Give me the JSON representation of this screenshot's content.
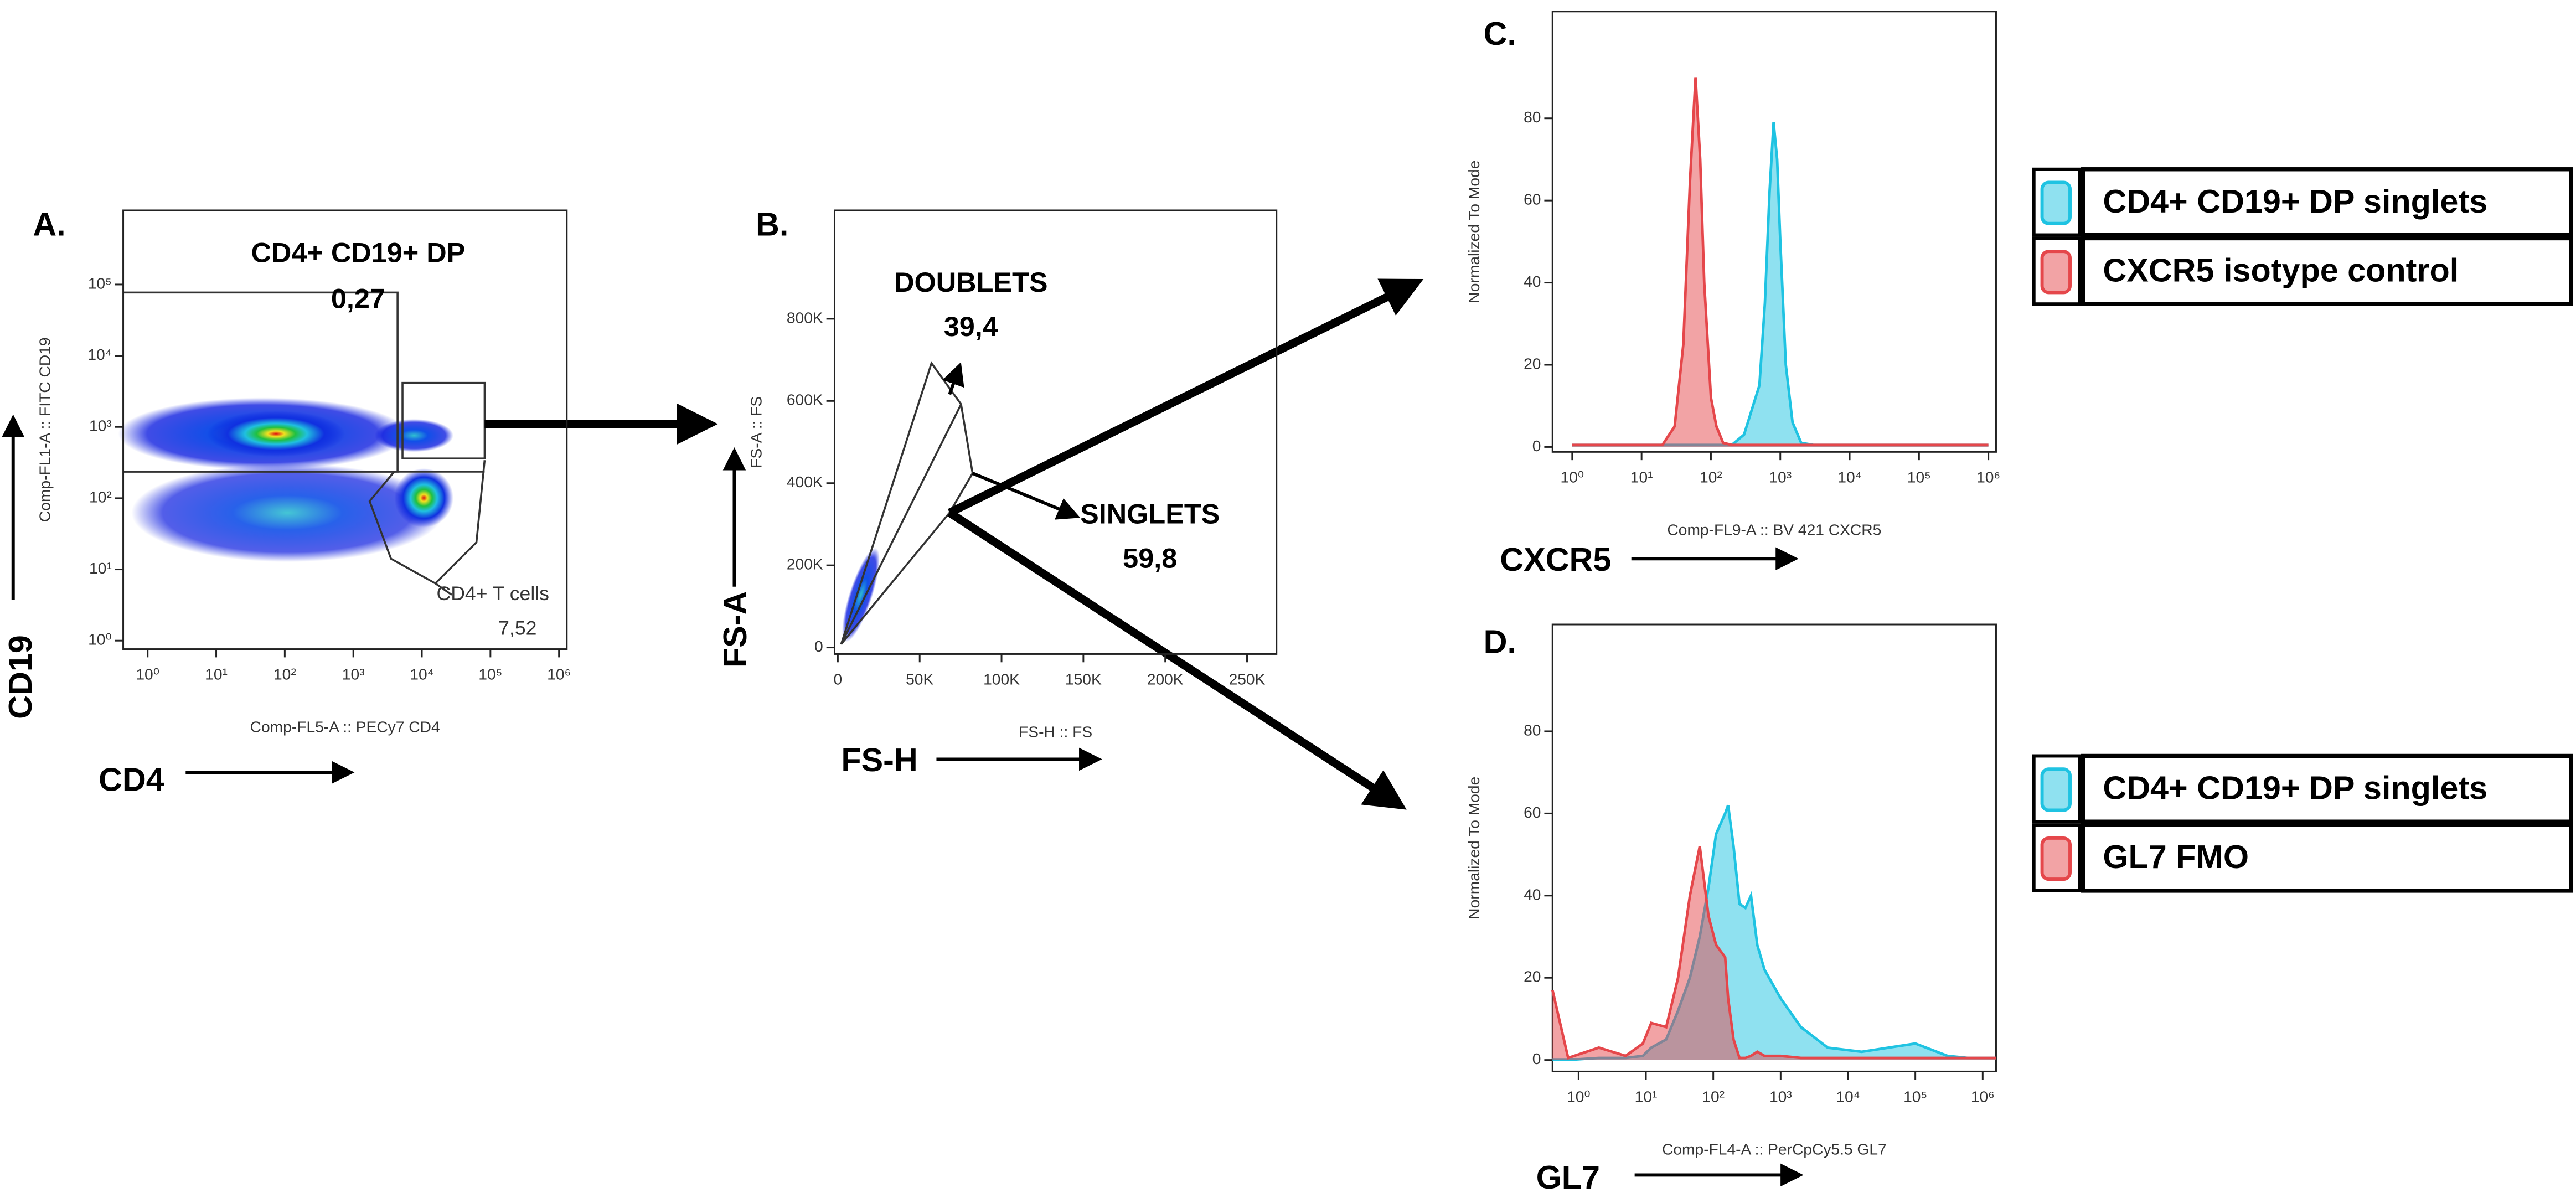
{
  "chart_data": [
    {
      "type": "density",
      "panel_label": "A.",
      "xlabel": "Comp-FL5-A :: PECy7 CD4",
      "ylabel": "Comp-FL1-A :: FITC CD19",
      "xmarker": "CD4",
      "ymarker": "CD19",
      "xscale": "log",
      "yscale": "log",
      "xlim": [
        0.44,
        1300000
      ],
      "ylim": [
        0.76,
        1100000
      ],
      "xticks": [
        {
          "value": 1,
          "label": "10⁰"
        },
        {
          "value": 10,
          "label": "10¹"
        },
        {
          "value": 100,
          "label": "10²"
        },
        {
          "value": 1000,
          "label": "10³"
        },
        {
          "value": 10000,
          "label": "10⁴"
        },
        {
          "value": 100000,
          "label": "10⁵"
        },
        {
          "value": 1000000,
          "label": "10⁶"
        }
      ],
      "yticks": [
        {
          "value": 1,
          "label": "10⁰"
        },
        {
          "value": 10,
          "label": "10¹"
        },
        {
          "value": 100,
          "label": "10²"
        },
        {
          "value": 1000,
          "label": "10³"
        },
        {
          "value": 10000,
          "label": "10⁴"
        },
        {
          "value": 100000,
          "label": "10⁵"
        }
      ],
      "gates": [
        {
          "name": "CD4+ CD19+ DP",
          "percent": "0,27"
        },
        {
          "name": "CD4+ T cells",
          "percent": "7,52"
        }
      ]
    },
    {
      "type": "density",
      "panel_label": "B.",
      "xlabel": "FS-H :: FS",
      "ylabel": "FS-A :: FS",
      "xmarker": "FS-H",
      "ymarker": "FS-A",
      "xscale": "linear",
      "yscale": "linear",
      "xlim": [
        -2000,
        268000
      ],
      "ylim": [
        -16000,
        1064000
      ],
      "xticks": [
        0,
        {
          "value": 50000,
          "label": "50K"
        },
        {
          "value": 100000,
          "label": "100K"
        },
        {
          "value": 150000,
          "label": "150K"
        },
        {
          "value": 200000,
          "label": "200K"
        },
        {
          "value": 250000,
          "label": "250K"
        }
      ],
      "yticks": [
        0,
        {
          "value": 200000,
          "label": "200K"
        },
        {
          "value": 400000,
          "label": "400K"
        },
        {
          "value": 600000,
          "label": "600K"
        },
        {
          "value": 800000,
          "label": "800K"
        }
      ],
      "gates": [
        {
          "name": "DOUBLETS",
          "percent": "39,4"
        },
        {
          "name": "SINGLETS",
          "percent": "59,8"
        }
      ]
    },
    {
      "type": "area",
      "panel_label": "C.",
      "xlabel": "Comp-FL9-A :: BV 421 CXCR5",
      "ylabel": "Normalized To Mode",
      "xmarker": "CXCR5",
      "xscale": "log",
      "yscale": "linear",
      "legend": "right",
      "xlim": [
        0.52,
        1290000
      ],
      "ylim": [
        -1.2,
        106
      ],
      "xticks": [
        {
          "value": 1,
          "label": "10⁰"
        },
        {
          "value": 10,
          "label": "10¹"
        },
        {
          "value": 100,
          "label": "10²"
        },
        {
          "value": 1000,
          "label": "10³"
        },
        {
          "value": 10000,
          "label": "10⁴"
        },
        {
          "value": 100000,
          "label": "10⁵"
        },
        {
          "value": 1000000,
          "label": "10⁶"
        }
      ],
      "yticks": [
        0,
        20,
        40,
        60,
        80
      ],
      "x": [
        1,
        20,
        30,
        40,
        50,
        60,
        70,
        80,
        100,
        120,
        150,
        200,
        300,
        500,
        600,
        700,
        800,
        900,
        1000,
        1200,
        1500,
        2000,
        3000,
        1000000
      ],
      "series": [
        {
          "name": "CD4+ CD19+ DP singlets",
          "color": "#1fc3e2",
          "values": [
            0.5,
            0.5,
            0.5,
            0.5,
            0.5,
            0.5,
            0.5,
            0.5,
            0.5,
            0.5,
            0.5,
            0.5,
            3,
            15,
            35,
            62,
            79,
            70,
            50,
            20,
            6,
            1,
            0.5,
            0.5
          ]
        },
        {
          "name": "CXCR5 isotype control",
          "color": "#e5474b",
          "values": [
            0.5,
            0.5,
            5,
            25,
            65,
            90,
            70,
            40,
            12,
            5,
            1,
            0.5,
            0.5,
            0.5,
            0.5,
            0.5,
            0.5,
            0.5,
            0.5,
            0.5,
            0.5,
            0.5,
            0.5,
            0.5
          ]
        }
      ]
    },
    {
      "type": "area",
      "panel_label": "D.",
      "xlabel": "Comp-FL4-A :: PerCpCy5.5 GL7",
      "ylabel": "Normalized To Mode",
      "xmarker": "GL7",
      "xscale": "log",
      "yscale": "linear",
      "legend": "right",
      "xlim": [
        0.41,
        1580000
      ],
      "ylim": [
        -2.8,
        106
      ],
      "xticks": [
        {
          "value": 1,
          "label": "10⁰"
        },
        {
          "value": 10,
          "label": "10¹"
        },
        {
          "value": 100,
          "label": "10²"
        },
        {
          "value": 1000,
          "label": "10³"
        },
        {
          "value": 10000,
          "label": "10⁴"
        },
        {
          "value": 100000,
          "label": "10⁵"
        },
        {
          "value": 1000000,
          "label": "10⁶"
        }
      ],
      "yticks": [
        0,
        20,
        40,
        60,
        80
      ],
      "x": [
        0.41,
        0.7,
        2,
        5,
        9,
        12,
        20,
        30,
        45,
        63,
        85,
        110,
        150,
        166,
        200,
        245,
        300,
        363,
        450,
        575,
        1000,
        2000,
        5000,
        16000,
        100000,
        300000,
        600000,
        1580000
      ],
      "series": [
        {
          "name": "CD4+ CD19+ DP singlets",
          "color": "#1fc3e2",
          "values": [
            0,
            0,
            0.5,
            0.5,
            1,
            3,
            5,
            12,
            20,
            30,
            42,
            55,
            60,
            62,
            52,
            38,
            37,
            40,
            28,
            22,
            15,
            8,
            3,
            2,
            4,
            1,
            0.5,
            0.5
          ]
        },
        {
          "name": "GL7 FMO",
          "color": "#e5474b",
          "values": [
            17,
            0.5,
            3,
            1,
            4,
            9,
            8,
            20,
            40,
            52,
            35,
            28,
            25,
            15,
            5,
            0.5,
            0.5,
            1,
            2,
            1,
            1,
            0.5,
            0.5,
            0.5,
            0.5,
            0.5,
            0.5,
            0.5
          ]
        }
      ]
    }
  ]
}
